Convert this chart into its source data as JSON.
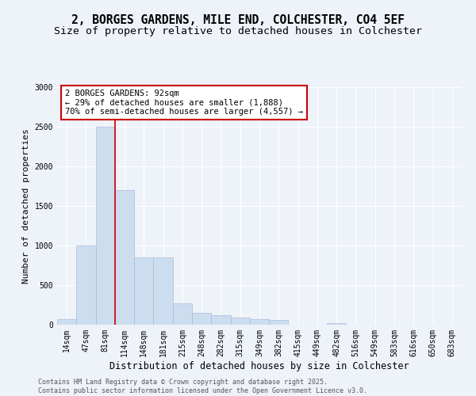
{
  "title_line1": "2, BORGES GARDENS, MILE END, COLCHESTER, CO4 5EF",
  "title_line2": "Size of property relative to detached houses in Colchester",
  "xlabel": "Distribution of detached houses by size in Colchester",
  "ylabel": "Number of detached properties",
  "bar_color": "#ccddf0",
  "bar_edge_color": "#aabbd8",
  "vline_color": "#cc0000",
  "vline_x_idx": 2,
  "annotation_text": "2 BORGES GARDENS: 92sqm\n← 29% of detached houses are smaller (1,888)\n70% of semi-detached houses are larger (4,557) →",
  "annotation_box_color": "#ffffff",
  "annotation_box_edge": "#cc0000",
  "categories": [
    "14sqm",
    "47sqm",
    "81sqm",
    "114sqm",
    "148sqm",
    "181sqm",
    "215sqm",
    "248sqm",
    "282sqm",
    "315sqm",
    "349sqm",
    "382sqm",
    "415sqm",
    "449sqm",
    "482sqm",
    "516sqm",
    "549sqm",
    "583sqm",
    "616sqm",
    "650sqm",
    "683sqm"
  ],
  "values": [
    75,
    1000,
    2500,
    1700,
    850,
    850,
    270,
    150,
    120,
    90,
    70,
    60,
    0,
    0,
    25,
    0,
    0,
    0,
    0,
    0,
    0
  ],
  "ylim": [
    0,
    3000
  ],
  "yticks": [
    0,
    500,
    1000,
    1500,
    2000,
    2500,
    3000
  ],
  "background_color": "#eef2f9",
  "grid_color": "#ffffff",
  "footer_text": "Contains HM Land Registry data © Crown copyright and database right 2025.\nContains public sector information licensed under the Open Government Licence v3.0.",
  "title_fontsize": 10.5,
  "subtitle_fontsize": 9.5,
  "xlabel_fontsize": 8.5,
  "ylabel_fontsize": 8,
  "tick_fontsize": 7,
  "annotation_fontsize": 7.5,
  "footer_fontsize": 6
}
